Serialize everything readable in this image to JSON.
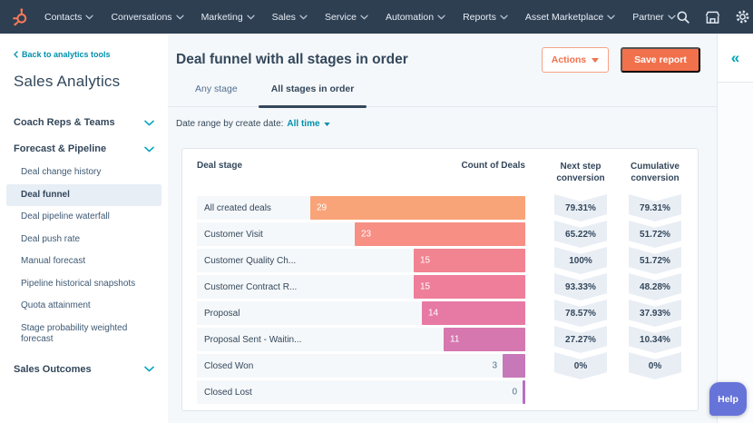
{
  "nav": {
    "items": [
      "Contacts",
      "Conversations",
      "Marketing",
      "Sales",
      "Service",
      "Automation",
      "Reports",
      "Asset Marketplace",
      "Partner"
    ],
    "icon_names": [
      "search-icon",
      "marketplace-icon",
      "settings-icon",
      "notifications-icon"
    ]
  },
  "sidebar": {
    "back_link": "Back to analytics tools",
    "title": "Sales Analytics",
    "sections": [
      {
        "label": "Coach Reps & Teams"
      },
      {
        "label": "Forecast & Pipeline"
      },
      {
        "label": "Sales Outcomes"
      }
    ],
    "forecast_items": [
      {
        "label": "Deal change history",
        "selected": false
      },
      {
        "label": "Deal funnel",
        "selected": true
      },
      {
        "label": "Deal pipeline waterfall",
        "selected": false
      },
      {
        "label": "Deal push rate",
        "selected": false
      },
      {
        "label": "Manual forecast",
        "selected": false
      },
      {
        "label": "Pipeline historical snapshots",
        "selected": false
      },
      {
        "label": "Quota attainment",
        "selected": false
      },
      {
        "label": "Stage probability weighted forecast",
        "selected": false
      }
    ]
  },
  "header": {
    "title": "Deal funnel with all stages in order",
    "actions_label": "Actions",
    "save_label": "Save report"
  },
  "tabs": [
    {
      "label": "Any stage",
      "active": false
    },
    {
      "label": "All stages in order",
      "active": true
    }
  ],
  "filter_bar": {
    "label": "Date range by create date:",
    "value": "All time"
  },
  "chart_data": {
    "type": "bar",
    "subtype": "funnel-table",
    "title": "Deal funnel with all stages in order",
    "columns": [
      "Deal stage",
      "Count of Deals",
      "Next step conversion",
      "Cumulative conversion"
    ],
    "categories": [
      "All created deals",
      "Customer Visit",
      "Customer Quality Ch...",
      "Customer Contract R...",
      "Proposal",
      "Proposal Sent - Waitin...",
      "Closed Won",
      "Closed Lost"
    ],
    "values": [
      29,
      23,
      15,
      15,
      14,
      11,
      3,
      0
    ],
    "next_step_conversion": [
      "79.31%",
      "65.22%",
      "100%",
      "93.33%",
      "78.57%",
      "27.27%",
      "0%",
      ""
    ],
    "cumulative_conversion": [
      "79.31%",
      "51.72%",
      "51.72%",
      "48.28%",
      "37.93%",
      "10.34%",
      "0%",
      ""
    ],
    "bar_colors": [
      "#f9a478",
      "#f78f85",
      "#f28390",
      "#ee7e9a",
      "#e77aa4",
      "#d677af",
      "#c678b8",
      "#b671c1"
    ],
    "xmax": 29,
    "xlabel": "",
    "ylabel": "",
    "legend": "none",
    "grid": false
  },
  "rail": {
    "collapse_icon": "«"
  },
  "help_label": "Help",
  "colors": {
    "nav_bg": "#2e3f52",
    "brand_orange": "#ff7a59",
    "button_coral": "#f2714d",
    "link_teal": "#0091ae",
    "chevron_teal": "#00a4bd",
    "text_navy": "#33475b",
    "content_bg": "#f5f8fa",
    "badge_bg": "#e9eef5",
    "selected_item_bg": "#e8eef5",
    "help_bubble": "#6673d9"
  }
}
